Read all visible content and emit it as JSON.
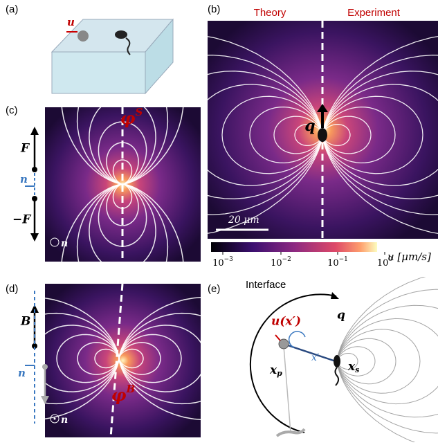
{
  "panel_labels": [
    "(a)",
    "(b)",
    "(c)",
    "(d)",
    "(e)"
  ],
  "a": {
    "velocity": "u"
  },
  "b": {
    "left_title": "Theory",
    "right_title": "Experiment",
    "dipole": "q",
    "scale_bar": "20 μm",
    "colorbar": {
      "label": "u [μm/s]",
      "ticks": [
        {
          "base": "10",
          "exponent": "−3"
        },
        {
          "base": "10",
          "exponent": "−2"
        },
        {
          "base": "10",
          "exponent": "−1"
        },
        {
          "base": "10",
          "exponent": "0"
        }
      ]
    }
  },
  "c": {
    "potential": {
      "symbol": "φ",
      "superscript": "S"
    },
    "force_up": "F",
    "force_down": "−F",
    "normal": "n",
    "normal_out": "n"
  },
  "d": {
    "potential": {
      "symbol": "φ",
      "superscript": "B"
    },
    "field": "B",
    "normal": "n",
    "normal_out": "n"
  },
  "e": {
    "interface": "Interface",
    "velocity": "u(x′)",
    "dipole": "q",
    "particle": {
      "symbol": "x",
      "subscript": "p"
    },
    "distance": "x′",
    "swimmer": {
      "symbol": "x",
      "subscript": "s"
    }
  }
}
